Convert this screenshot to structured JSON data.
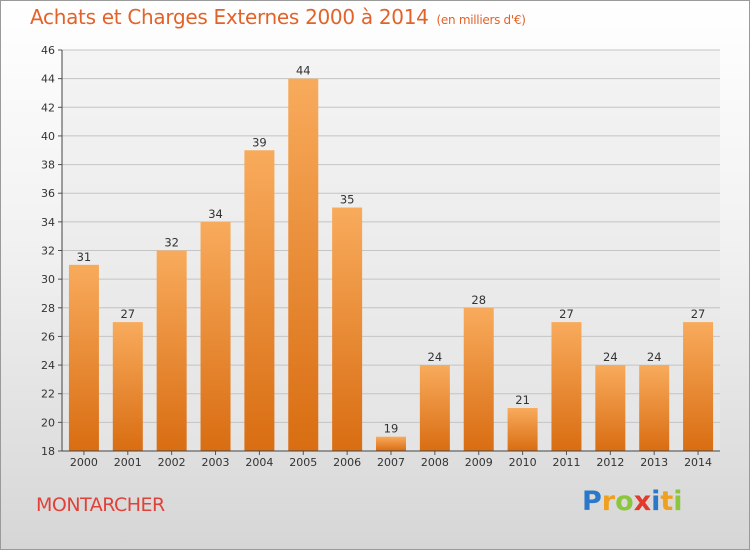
{
  "title": "Achats et Charges Externes 2000 à 2014",
  "unit_note": "(en milliers d'€)",
  "commune": "MONTARCHER",
  "brand": {
    "letters": [
      "P",
      "r",
      "o",
      "x",
      "i",
      "t",
      "i"
    ],
    "colors": [
      "#2a79c8",
      "#f0a020",
      "#8cc63f",
      "#e23a2b",
      "#2a79c8",
      "#f0a020",
      "#8cc63f"
    ]
  },
  "colors": {
    "title": "#e2632a",
    "commune": "#e0423a",
    "bar_light": "#f8ab5c",
    "bar_dark": "#d96d12"
  },
  "chart_data": {
    "type": "bar",
    "categories": [
      "2000",
      "2001",
      "2002",
      "2003",
      "2004",
      "2005",
      "2006",
      "2007",
      "2008",
      "2009",
      "2010",
      "2011",
      "2012",
      "2013",
      "2014"
    ],
    "values": [
      31,
      27,
      32,
      34,
      39,
      44,
      35,
      19,
      24,
      28,
      21,
      27,
      24,
      24,
      27
    ],
    "title": "Achats et Charges Externes 2000 à 2014",
    "ylim": [
      18,
      46
    ],
    "yticks": [
      18,
      20,
      22,
      24,
      26,
      28,
      30,
      32,
      34,
      36,
      38,
      40,
      42,
      44,
      46
    ],
    "grid": true,
    "data_labels": true
  }
}
